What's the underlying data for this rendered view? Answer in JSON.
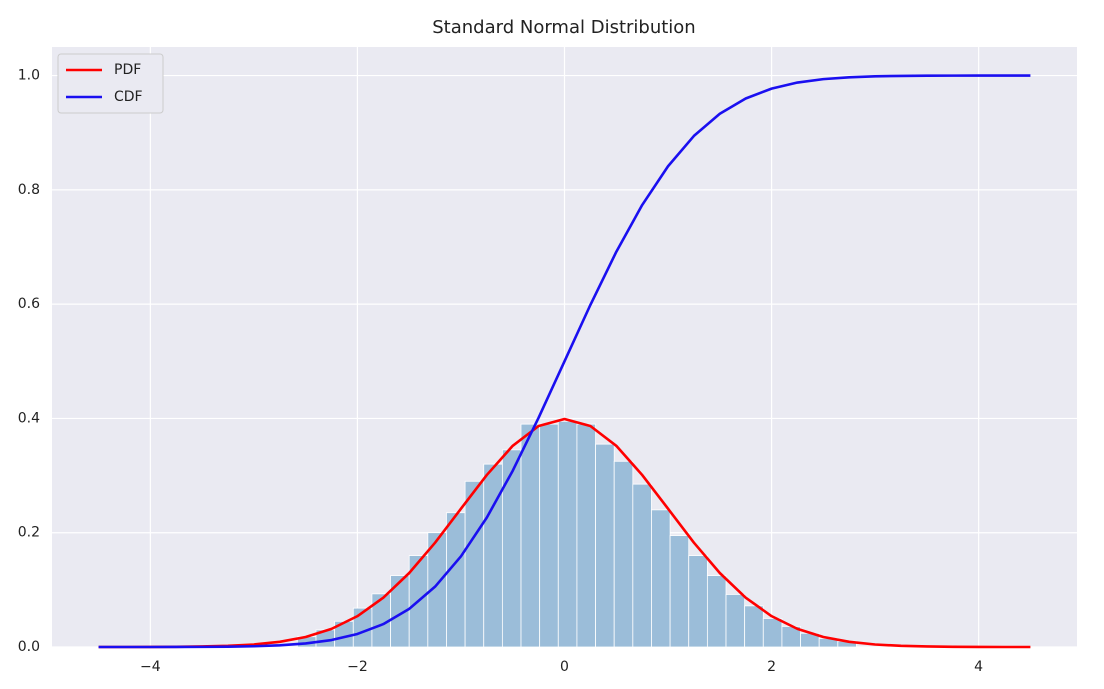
{
  "chart_data": {
    "type": "line",
    "title": "Standard Normal Distribution",
    "x": [
      -4.5,
      -4.25,
      -4,
      -3.75,
      -3.5,
      -3.25,
      -3,
      -2.75,
      -2.5,
      -2.25,
      -2,
      -1.75,
      -1.5,
      -1.25,
      -1,
      -0.75,
      -0.5,
      -0.25,
      0,
      0.25,
      0.5,
      0.75,
      1,
      1.25,
      1.5,
      1.75,
      2,
      2.25,
      2.5,
      2.75,
      3,
      3.25,
      3.5,
      3.75,
      4,
      4.25,
      4.5
    ],
    "series": [
      {
        "name": "PDF",
        "color": "#ff0000",
        "values": [
          0,
          0,
          0.0001,
          0.0004,
          0.0009,
          0.002,
          0.0044,
          0.0091,
          0.0175,
          0.0317,
          0.054,
          0.0863,
          0.1295,
          0.1826,
          0.242,
          0.3011,
          0.3521,
          0.3867,
          0.3989,
          0.3867,
          0.3521,
          0.3011,
          0.242,
          0.1826,
          0.1295,
          0.0863,
          0.054,
          0.0317,
          0.0175,
          0.0091,
          0.0044,
          0.002,
          0.0009,
          0.0004,
          0.0001,
          0,
          0
        ]
      },
      {
        "name": "CDF",
        "color": "#1a0ff0",
        "values": [
          0,
          0,
          0,
          0.0001,
          0.0002,
          0.0006,
          0.0013,
          0.003,
          0.0062,
          0.0122,
          0.0228,
          0.0401,
          0.0668,
          0.1056,
          0.1587,
          0.2266,
          0.3085,
          0.4013,
          0.5,
          0.5987,
          0.6915,
          0.7734,
          0.8413,
          0.8944,
          0.9332,
          0.9599,
          0.9772,
          0.9878,
          0.9938,
          0.997,
          0.9987,
          0.9994,
          0.9998,
          0.9999,
          1,
          1,
          1
        ]
      }
    ],
    "histogram": {
      "color": "#9bbdd9",
      "bins": [
        -2.58,
        -2.4,
        -2.22,
        -2.04,
        -1.86,
        -1.68,
        -1.5,
        -1.32,
        -1.14,
        -0.96,
        -0.78,
        -0.6,
        -0.42,
        -0.24,
        -0.06,
        0.12,
        0.3,
        0.48,
        0.66,
        0.84,
        1.02,
        1.2,
        1.38,
        1.56,
        1.74,
        1.92,
        2.1,
        2.28,
        2.46,
        2.64,
        2.82
      ],
      "values": [
        0.018,
        0.03,
        0.045,
        0.068,
        0.093,
        0.125,
        0.16,
        0.2,
        0.235,
        0.29,
        0.32,
        0.345,
        0.39,
        0.39,
        0.395,
        0.39,
        0.355,
        0.325,
        0.285,
        0.24,
        0.195,
        0.16,
        0.125,
        0.092,
        0.072,
        0.05,
        0.036,
        0.024,
        0.015,
        0.01
      ]
    },
    "xlim": [
      -4.95,
      4.95
    ],
    "ylim": [
      0,
      1.05
    ],
    "xticks": [
      {
        "value": -4,
        "label": "−4"
      },
      {
        "value": -2,
        "label": "−2"
      },
      {
        "value": 0,
        "label": "0"
      },
      {
        "value": 2,
        "label": "2"
      },
      {
        "value": 4,
        "label": "4"
      }
    ],
    "yticks": [
      {
        "value": 0,
        "label": "0.0"
      },
      0.2,
      0.4,
      0.6,
      0.8,
      {
        "value": 1,
        "label": "1.0"
      }
    ],
    "grid": true,
    "legend": "upper left"
  }
}
